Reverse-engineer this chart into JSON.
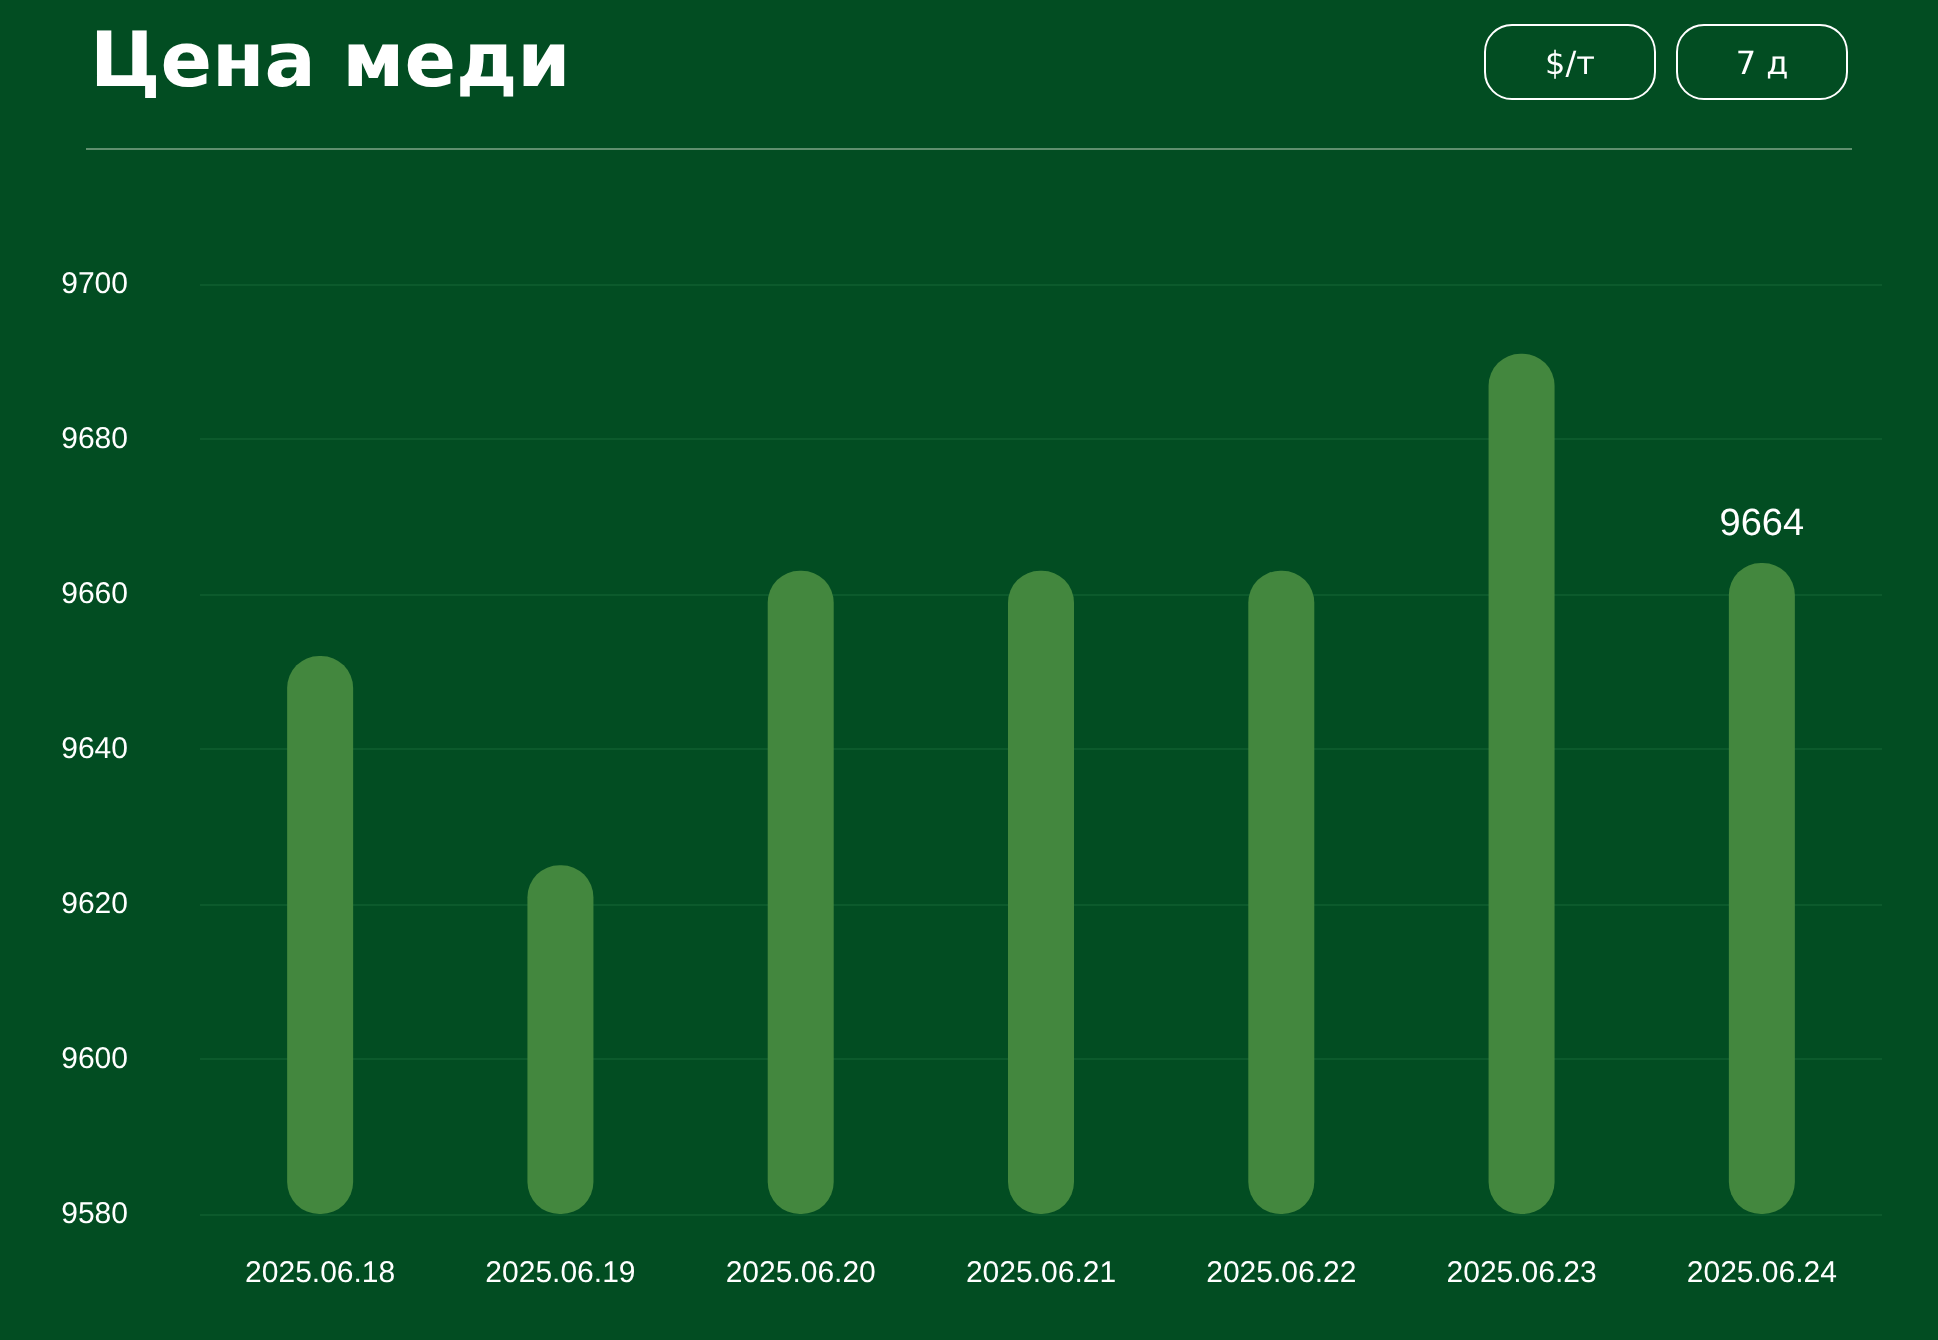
{
  "chart_data": {
    "type": "bar",
    "title": "Цена меди",
    "categories": [
      "2025.06.18",
      "2025.06.19",
      "2025.06.20",
      "2025.06.21",
      "2025.06.22",
      "2025.06.23",
      "2025.06.24"
    ],
    "values": [
      9652,
      9625,
      9663,
      9663,
      9663,
      9691,
      9664
    ],
    "value_labels": [
      null,
      null,
      null,
      null,
      null,
      null,
      "9664"
    ],
    "color": "#43873e",
    "ylim": [
      9580,
      9700
    ],
    "yticks": [
      9580,
      9600,
      9620,
      9640,
      9660,
      9680,
      9700
    ],
    "grid": "y",
    "annotations": [
      "$/т",
      "7 д"
    ]
  }
}
